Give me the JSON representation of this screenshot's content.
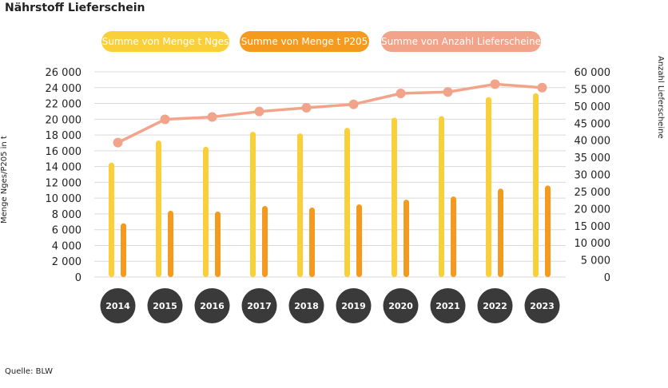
{
  "title": "Nährstoff Lieferschein",
  "source": "Quelle: BLW",
  "colors": {
    "nges": "#F9CF3A",
    "p205": "#F39A1F",
    "anzahl": "#F2A48A",
    "grid": "#d9d9d9",
    "circle": "#3a3a3a"
  },
  "chart_data": {
    "type": "bar",
    "title": "Nährstoff Lieferschein",
    "categories": [
      "2014",
      "2015",
      "2016",
      "2017",
      "2018",
      "2019",
      "2020",
      "2021",
      "2022",
      "2023"
    ],
    "series": [
      {
        "name": "Summe von Menge t Nges",
        "type": "bar",
        "axis": "left",
        "values": [
          14500,
          17300,
          16500,
          18400,
          18200,
          18900,
          20200,
          20400,
          22800,
          23300
        ]
      },
      {
        "name": "Summe von Menge t P205",
        "type": "bar",
        "axis": "left",
        "values": [
          6800,
          8400,
          8300,
          9000,
          8800,
          9200,
          9800,
          10200,
          11200,
          11600
        ]
      },
      {
        "name": "Summe von Anzahl Lieferscheine",
        "type": "line",
        "axis": "right",
        "values": [
          39300,
          46100,
          46800,
          48400,
          49500,
          50500,
          53700,
          54100,
          56400,
          55400
        ]
      }
    ],
    "ylabel": "Menge Nges/P205 in t",
    "ylim": [
      0,
      26000
    ],
    "yticks": [
      "26 000",
      "24 000",
      "22 000",
      "20 000",
      "18 000",
      "16 000",
      "14 000",
      "12 000",
      "10 000",
      "8 000",
      "6 000",
      "4 000",
      "2 000",
      "0"
    ],
    "y2label": "Anzahl Lieferscheine",
    "y2lim": [
      0,
      60000
    ],
    "y2ticks": [
      "60 000",
      "55 000",
      "50 000",
      "45 000",
      "40 000",
      "35 000",
      "30 000",
      "25 000",
      "20 000",
      "15 000",
      "10 000",
      "5 000",
      "0"
    ],
    "legend_position": "top",
    "grid": true
  }
}
